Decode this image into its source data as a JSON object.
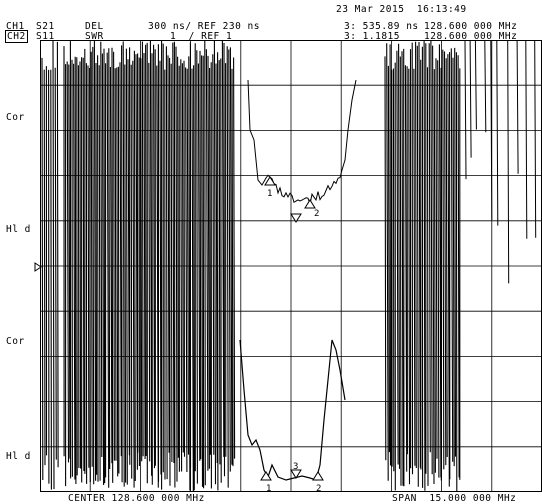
{
  "header": {
    "datetime": "23 Mar 2015  16:13:49",
    "ch1": {
      "label": "CH1",
      "param": "S21",
      "format": "DEL",
      "scale": "300 ns/ REF 230 ns",
      "marker": "3: 535.89 ns",
      "marker_freq": "128.600 000 MHz"
    },
    "ch2": {
      "label": "CH2",
      "param": "S11",
      "format": "SWR",
      "scale": "1  / REF 1",
      "marker": "3: 1.1815",
      "marker_freq": "128.600 000 MHz"
    }
  },
  "side_labels": {
    "cor_1": "Cor",
    "hld_1": "Hl d",
    "cor_2": "Cor",
    "hld_2": "Hl d"
  },
  "footer": {
    "center": "CENTER 128.600 000 MHz",
    "span": "SPAN  15.000 000 MHz"
  },
  "markers": {
    "m1": "1",
    "m2": "2",
    "m3": "3"
  },
  "chart_data": {
    "type": "line",
    "title": "",
    "grid": true,
    "grid_divisions": {
      "x": 10,
      "y": 10
    },
    "x_center_mhz": 128.6,
    "x_span_mhz": 15.0,
    "series": [
      {
        "name": "S21",
        "format": "DEL",
        "ref_ns": 230,
        "scale_ns_per_div": 300,
        "marker_3_value": "535.89 ns"
      },
      {
        "name": "S11",
        "format": "SWR",
        "ref": 1,
        "scale_per_div": 1,
        "marker_3_value": "1.1815"
      }
    ]
  },
  "colors": {
    "background": "#ffffff",
    "trace": "#000000",
    "grid": "#000000"
  }
}
